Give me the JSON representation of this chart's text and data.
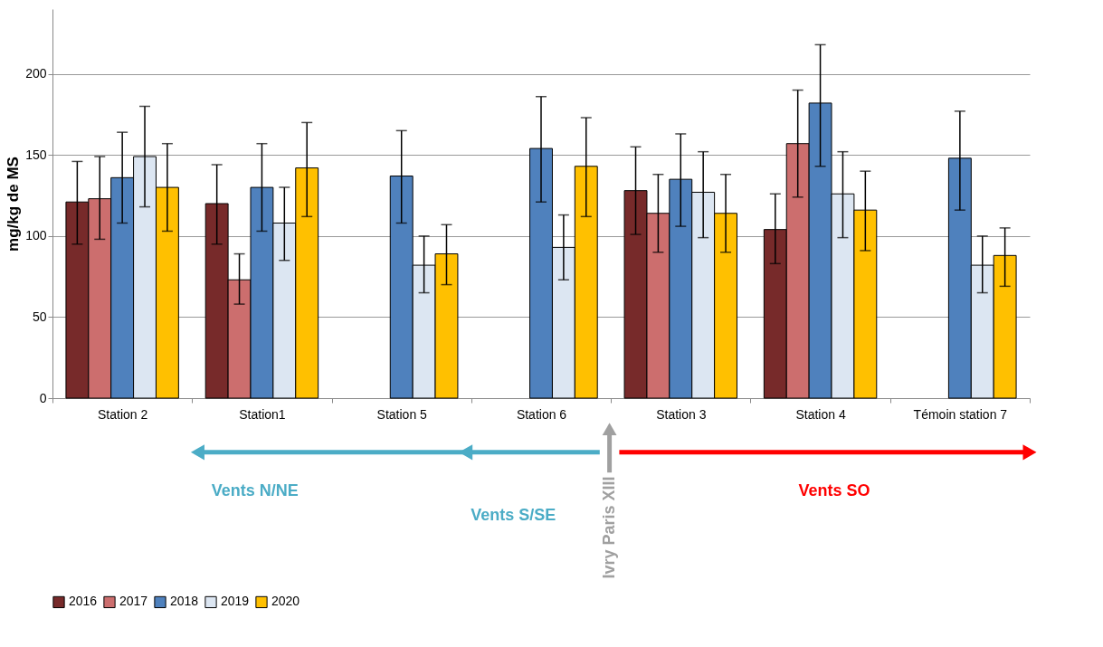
{
  "chart_data": {
    "type": "bar",
    "ylabel": "mg/kg de MS",
    "categories": [
      "Station 2",
      "Station1",
      "Station 5",
      "Station 6",
      "Station 3",
      "Station 4",
      "Témoin station 7"
    ],
    "series": [
      {
        "name": "2016",
        "color": "#772a2a",
        "values": [
          121,
          120,
          null,
          null,
          128,
          104,
          null
        ],
        "errors": [
          [
            95,
            146
          ],
          [
            95,
            144
          ],
          null,
          null,
          [
            101,
            155
          ],
          [
            83,
            126
          ],
          null
        ]
      },
      {
        "name": "2017",
        "color": "#cc6e6e",
        "values": [
          123,
          73,
          null,
          null,
          114,
          157,
          null
        ],
        "errors": [
          [
            98,
            149
          ],
          [
            58,
            89
          ],
          null,
          null,
          [
            90,
            138
          ],
          [
            124,
            190
          ],
          null
        ]
      },
      {
        "name": "2018",
        "color": "#4f81bd",
        "values": [
          136,
          130,
          137,
          154,
          135,
          182,
          148
        ],
        "errors": [
          [
            108,
            164
          ],
          [
            103,
            157
          ],
          [
            108,
            165
          ],
          [
            121,
            186
          ],
          [
            106,
            163
          ],
          [
            143,
            218
          ],
          [
            116,
            177
          ]
        ]
      },
      {
        "name": "2019",
        "color": "#dce6f2",
        "values": [
          149,
          108,
          82,
          93,
          127,
          126,
          82
        ],
        "errors": [
          [
            118,
            180
          ],
          [
            85,
            130
          ],
          [
            65,
            100
          ],
          [
            73,
            113
          ],
          [
            99,
            152
          ],
          [
            99,
            152
          ],
          [
            65,
            100
          ]
        ]
      },
      {
        "name": "2020",
        "color": "#ffc000",
        "values": [
          130,
          142,
          89,
          143,
          114,
          116,
          88
        ],
        "errors": [
          [
            103,
            157
          ],
          [
            112,
            170
          ],
          [
            70,
            107
          ],
          [
            112,
            173
          ],
          [
            90,
            138
          ],
          [
            91,
            140
          ],
          [
            69,
            105
          ]
        ]
      }
    ],
    "ylim": [
      0,
      240
    ],
    "yticks": [
      0,
      50,
      100,
      150,
      200
    ],
    "grid": "y",
    "legend": "bottom left",
    "annotations": [
      "Vents N/NE",
      "Vents S/SE",
      "Ivry Paris XIII",
      "Vents SO"
    ]
  }
}
